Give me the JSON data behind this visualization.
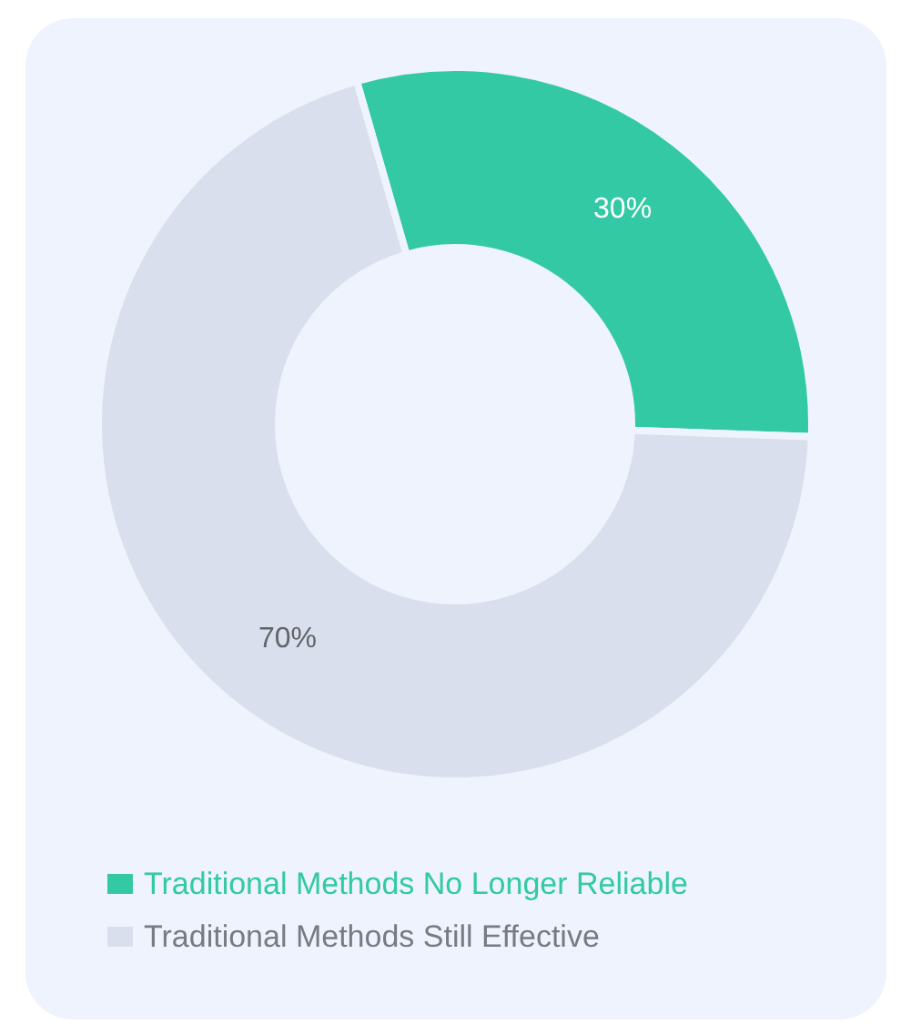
{
  "chart_data": {
    "type": "donut",
    "categories": [
      "Traditional Methods No Longer Reliable",
      "Traditional Methods Still Effective"
    ],
    "values": [
      30,
      70
    ],
    "colors": [
      "#33c9a5",
      "#d9dfec"
    ],
    "value_labels": [
      "30%",
      "70%"
    ],
    "legend": "bottom left"
  }
}
